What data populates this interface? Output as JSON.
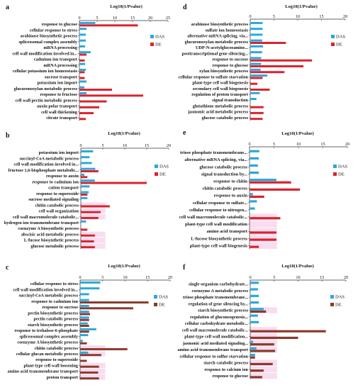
{
  "colors": {
    "DAS": "#29a8dc",
    "DE": "#d9232e",
    "DE_f": "#8b3a2a",
    "hl": "#f8dcef"
  },
  "chart_data": [
    {
      "id": "a",
      "type": "bar",
      "panel_label": "a",
      "title": "Log10(1/Pvalue)",
      "xlim": [
        0,
        25
      ],
      "xticks": [
        0,
        5,
        10,
        15,
        20,
        25
      ],
      "legend": [
        "DAS",
        "DE"
      ],
      "categories": [
        "response to glucose",
        "cellular response to stress",
        "arabinose biosynthetic process",
        "spliceosomal complex assembly",
        "mRNA processing",
        "cell wall modification involved in...",
        "cadmium ion transport",
        "mRNA processing",
        "cellular potassium ion homeostasis",
        "sucrose transport",
        "potassium ion import",
        "glucuronoxylan metabolic process",
        "response to fructose",
        "cell wall pectin metabolic process",
        "auxin polar transport",
        "cell wall thickening",
        "citrate transport"
      ],
      "series": [
        {
          "name": "DAS",
          "values": [
            4.5,
            2.0,
            1.8,
            1.8,
            1.6,
            3.2,
            0,
            1.6,
            1.8,
            0,
            2.0,
            1.4,
            2.0,
            0,
            0,
            0,
            0
          ]
        },
        {
          "name": "DE",
          "values": [
            16.5,
            0,
            0,
            0,
            0,
            2.0,
            1.5,
            0,
            1.5,
            1.5,
            0,
            9.2,
            18.0,
            7.7,
            5.6,
            4.0,
            1.8
          ]
        }
      ]
    },
    {
      "id": "b",
      "type": "bar",
      "panel_label": "b",
      "title": "Log10(1/Pvalue)",
      "xlim": [
        0,
        20
      ],
      "xticks": [
        0,
        5,
        10,
        15,
        20
      ],
      "legend": [
        "DAS",
        "DE"
      ],
      "categories": [
        "potassium ion import",
        "succinyl-CoA metabolic process",
        "cell wall modification involved in...",
        "fructose 1,6-bisphosphate metabolic...",
        "response to auxin",
        "response to cadmium ion",
        "cation transport",
        "response to superoxide",
        "sucrose mediated signaling",
        "chitin catabolic process",
        "cell wall organization",
        "cell wall macromolecule catabolic...",
        "hydrogen ion transmembrane transport",
        "coenzyme A biosynthetic process",
        "abscisic acid metabolic process",
        "L-fucose biosynthetic process",
        "glucose metabolic process"
      ],
      "series": [
        {
          "name": "DAS",
          "values": [
            2.8,
            2.0,
            2.5,
            3.3,
            0.8,
            3.2,
            2.0,
            1.8,
            1.5,
            0,
            0,
            0,
            1.2,
            0,
            0,
            0,
            0
          ]
        },
        {
          "name": "DE",
          "values": [
            0,
            0,
            0,
            4.0,
            1.5,
            15.0,
            0,
            1.5,
            0,
            6.6,
            4.5,
            4.0,
            0,
            1.5,
            3.2,
            3.0,
            3.2
          ]
        }
      ],
      "highlighted": [
        9,
        10,
        11,
        14,
        15,
        16
      ]
    },
    {
      "id": "c",
      "type": "bar",
      "panel_label": "c",
      "title": "Log10(1/Pvalue)",
      "xlim": [
        0,
        20
      ],
      "xticks": [
        0,
        5,
        10,
        15,
        20
      ],
      "legend": [
        "DAS",
        "DE"
      ],
      "categories": [
        "cellular response to stress",
        "cell wall modification involved in...",
        "succinyl-CoA metabolic process",
        "response to cadmium ion",
        "response to sucrose",
        "pectin biosynthetic process",
        "pectin catabolic process",
        "starch biosynthetic process",
        "response to trehalose-6-phosphate",
        "spliceosomal complex assembly",
        "coenzyme A biosynthetic process",
        "chitin catabolic process",
        "cellular glucan metabolic process",
        "response to superoxide",
        "plant-type cell wall loosening",
        "amino acid transmembrane transport",
        "proton transport"
      ],
      "series": [
        {
          "name": "DAS",
          "values": [
            4.5,
            4.3,
            2.0,
            2.0,
            2.0,
            2.0,
            2.0,
            1.7,
            3.6,
            1.8,
            0.6,
            0,
            1.8,
            0,
            0,
            0,
            0
          ]
        },
        {
          "name": "DE",
          "values": [
            0,
            0,
            0,
            15.2,
            11.8,
            2.2,
            2.0,
            2.0,
            2.0,
            0,
            1.5,
            10.5,
            4.7,
            1.5,
            4.2,
            4.0,
            4.2
          ]
        }
      ],
      "highlighted": [
        11,
        12,
        14,
        15,
        16
      ]
    },
    {
      "id": "d",
      "type": "bar",
      "panel_label": "d",
      "title": "Log10(1/Pvalue)",
      "xlim": [
        0,
        20
      ],
      "xticks": [
        0,
        5,
        10,
        15,
        20
      ],
      "legend": [
        "DAS",
        "DE"
      ],
      "categories": [
        "arabinose biosynthetic process",
        "sulfate ion homeostasis",
        "alternative mRNA splicing, via...",
        "glucuronoxylan metabolic process",
        "UDP-N-acetylglucosamine...",
        "posttranscriptional gene silencing...",
        "response to sucrose",
        "response to glucose",
        "xylan biosynthetic process",
        "cellular response to sulfate starvation",
        "plant-type cell wall biogenesis",
        "secondary cell wall biogenesis",
        "regulation of proton transport",
        "signal transduction",
        "glutathione metabolic process",
        "jasmonic acid metabolic process",
        "glucose catabolic process"
      ],
      "series": [
        {
          "name": "DAS",
          "values": [
            2.6,
            2.6,
            2.6,
            2.5,
            2.7,
            2.5,
            2.3,
            2.3,
            2.2,
            3.6,
            0,
            0,
            2.0,
            1.3,
            0,
            0,
            0
          ]
        },
        {
          "name": "DE",
          "values": [
            0,
            0,
            0,
            7.5,
            0,
            0,
            13.0,
            11.2,
            7.2,
            2.6,
            1.5,
            4.1,
            0,
            0,
            2.8,
            2.8,
            2.6
          ]
        }
      ]
    },
    {
      "id": "e",
      "type": "bar",
      "panel_label": "e",
      "title": "Log10(1/Pvalue)",
      "xlim": [
        0,
        20
      ],
      "xticks": [
        0,
        5,
        10,
        15,
        20
      ],
      "legend": [
        "DAS",
        "DE"
      ],
      "categories": [
        "triose phosphate transmembrane...",
        "alternative mRNA splicing, via...",
        "glucose catabolic process",
        "signal transduction by...",
        "response to chitin",
        "chitin catabolic process",
        "response to auxin",
        "cellular response to sulfate...",
        "cellular response to nitrogen...",
        "cell wall macromolecule catabolic...",
        "plant-type cell wall modification",
        "amino acid transport",
        "L-fucose biosynthetic process",
        "plant-type cell wall biogenesis"
      ],
      "series": [
        {
          "name": "DAS",
          "values": [
            2.0,
            1.9,
            1.7,
            1.9,
            5.5,
            0,
            0.7,
            1.5,
            1.1,
            0,
            0,
            0,
            0,
            0
          ]
        },
        {
          "name": "DE",
          "values": [
            0,
            0,
            0,
            0,
            8.5,
            10.3,
            3.0,
            0,
            0,
            6.3,
            0,
            5.5,
            5.5,
            1.9
          ]
        }
      ],
      "highlighted": [
        9,
        10,
        11,
        12,
        13
      ]
    },
    {
      "id": "f",
      "type": "bar",
      "panel_label": "f",
      "title": "Log10(1/Pvalue)",
      "xlim": [
        0,
        20
      ],
      "xticks": [
        0,
        5,
        10,
        15,
        20
      ],
      "legend": [
        "DAS",
        "DE"
      ],
      "categories": [
        "single-organism carbohydrate...",
        "coenzyme A metabolic process",
        "triose phosphate transmembrane...",
        "regulation of gene silencing by...",
        "starch biosynthetic process",
        "regulation of gluconeogenesis...",
        "cellular carbohydrate metabolic...",
        "cell wall macromolecule catabolic...",
        "plant-type cell wall modification...",
        "jasmonic acid mediated signaling...",
        "amino acid transmembrane transport",
        "cellular response to sulfur starvation",
        "starch catabolic process",
        "response to calcium ion",
        "response to glucose"
      ],
      "series": [
        {
          "name": "DAS",
          "values": [
            1.8,
            1.6,
            1.8,
            1.8,
            2.8,
            1.6,
            1.8,
            0,
            0,
            0.6,
            1.3,
            1.0,
            0,
            0,
            0
          ]
        },
        {
          "name": "DE",
          "values": [
            0,
            0,
            0,
            0,
            3.3,
            0,
            0,
            15.8,
            10.0,
            5.0,
            5.2,
            1.0,
            4.7,
            2.8,
            2.5
          ]
        }
      ],
      "highlighted": [
        4,
        7,
        8,
        9,
        10,
        12,
        13,
        14
      ]
    }
  ]
}
